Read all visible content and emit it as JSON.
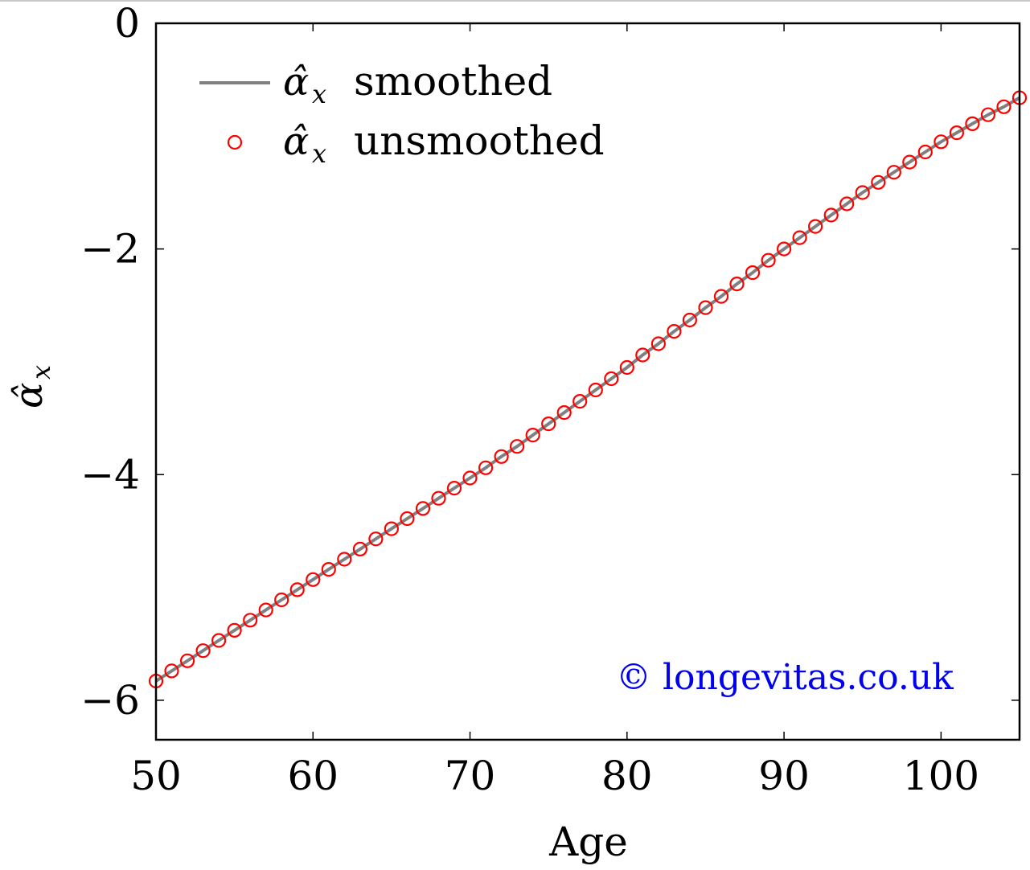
{
  "chart_data": {
    "type": "line",
    "xlabel": "Age",
    "ylabel_symbol": "α̂",
    "ylabel_sub": "x",
    "xlim": [
      50,
      105
    ],
    "ylim": [
      -6.35,
      0
    ],
    "xticks": [
      50,
      60,
      70,
      80,
      90,
      100
    ],
    "yticks": [
      0,
      -2,
      -4,
      -6
    ],
    "xtick_labels": [
      "50",
      "60",
      "70",
      "80",
      "90",
      "100"
    ],
    "ytick_labels": [
      "0",
      "−2",
      "−4",
      "−6"
    ],
    "grid": false,
    "legend_position": "top-left",
    "annotation": "© longevitas.co.uk",
    "annotation_color": "#0000ee",
    "series": [
      {
        "name_symbol": "α̂",
        "name_sub": "x",
        "name_text": "smoothed",
        "style": "line",
        "color": "#808080",
        "x": [
          50,
          51,
          52,
          53,
          54,
          55,
          56,
          57,
          58,
          59,
          60,
          61,
          62,
          63,
          64,
          65,
          66,
          67,
          68,
          69,
          70,
          71,
          72,
          73,
          74,
          75,
          76,
          77,
          78,
          79,
          80,
          81,
          82,
          83,
          84,
          85,
          86,
          87,
          88,
          89,
          90,
          91,
          92,
          93,
          94,
          95,
          96,
          97,
          98,
          99,
          100,
          101,
          102,
          103,
          104,
          105
        ],
        "values": [
          -5.83,
          -5.74,
          -5.65,
          -5.56,
          -5.47,
          -5.38,
          -5.29,
          -5.2,
          -5.11,
          -5.02,
          -4.93,
          -4.84,
          -4.75,
          -4.66,
          -4.57,
          -4.48,
          -4.39,
          -4.3,
          -4.21,
          -4.12,
          -4.03,
          -3.94,
          -3.84,
          -3.75,
          -3.65,
          -3.55,
          -3.45,
          -3.35,
          -3.25,
          -3.15,
          -3.05,
          -2.94,
          -2.84,
          -2.73,
          -2.63,
          -2.52,
          -2.42,
          -2.31,
          -2.21,
          -2.1,
          -2.0,
          -1.9,
          -1.8,
          -1.7,
          -1.6,
          -1.5,
          -1.41,
          -1.32,
          -1.23,
          -1.14,
          -1.05,
          -0.97,
          -0.89,
          -0.81,
          -0.74,
          -0.66
        ]
      },
      {
        "name_symbol": "α̂",
        "name_sub": "x",
        "name_text": "unsmoothed",
        "style": "markers",
        "color": "#ff0000",
        "x": [
          50,
          51,
          52,
          53,
          54,
          55,
          56,
          57,
          58,
          59,
          60,
          61,
          62,
          63,
          64,
          65,
          66,
          67,
          68,
          69,
          70,
          71,
          72,
          73,
          74,
          75,
          76,
          77,
          78,
          79,
          80,
          81,
          82,
          83,
          84,
          85,
          86,
          87,
          88,
          89,
          90,
          91,
          92,
          93,
          94,
          95,
          96,
          97,
          98,
          99,
          100,
          101,
          102,
          103,
          104,
          105
        ],
        "values": [
          -5.83,
          -5.74,
          -5.65,
          -5.56,
          -5.47,
          -5.38,
          -5.29,
          -5.2,
          -5.11,
          -5.02,
          -4.93,
          -4.84,
          -4.75,
          -4.66,
          -4.57,
          -4.48,
          -4.39,
          -4.3,
          -4.21,
          -4.12,
          -4.03,
          -3.94,
          -3.84,
          -3.75,
          -3.65,
          -3.55,
          -3.45,
          -3.35,
          -3.25,
          -3.15,
          -3.05,
          -2.94,
          -2.84,
          -2.73,
          -2.63,
          -2.52,
          -2.42,
          -2.31,
          -2.21,
          -2.1,
          -2.0,
          -1.9,
          -1.8,
          -1.7,
          -1.6,
          -1.5,
          -1.41,
          -1.32,
          -1.23,
          -1.14,
          -1.05,
          -0.97,
          -0.89,
          -0.81,
          -0.74,
          -0.66
        ]
      }
    ]
  }
}
